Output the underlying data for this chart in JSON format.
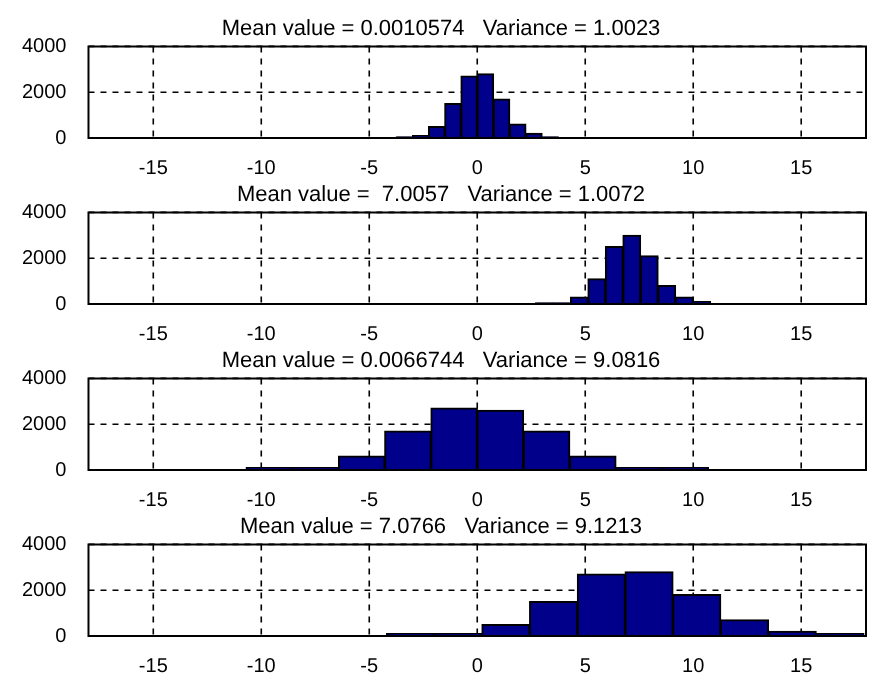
{
  "chart_data": [
    {
      "type": "histogram",
      "title": "Mean value = 0.0010574   Variance = 1.0023",
      "bins": [
        -3.75,
        -3,
        -2.25,
        -1.5,
        -0.75,
        0,
        0.75,
        1.5,
        2.25,
        3,
        3.75
      ],
      "values": [
        50,
        100,
        500,
        1500,
        2700,
        2800,
        1700,
        600,
        200,
        50
      ],
      "color": "#00008b",
      "xlim": [
        -18,
        18
      ],
      "xticks": [
        -15,
        -10,
        -5,
        0,
        5,
        10,
        15
      ],
      "ylim": [
        0,
        4000
      ],
      "yticks": [
        0,
        2000,
        4000
      ],
      "grid": true
    },
    {
      "type": "histogram",
      "title": "Mean value =  7.0057   Variance = 1.0072",
      "bins": [
        2.7,
        3.51,
        4.32,
        5.13,
        5.94,
        6.75,
        7.56,
        8.37,
        9.18,
        9.99,
        10.8
      ],
      "values": [
        50,
        50,
        300,
        1100,
        2500,
        3000,
        2100,
        800,
        300,
        100
      ],
      "color": "#00008b",
      "xlim": [
        -18,
        18
      ],
      "xticks": [
        -15,
        -10,
        -5,
        0,
        5,
        10,
        15
      ],
      "ylim": [
        0,
        4000
      ],
      "yticks": [
        0,
        2000,
        4000
      ],
      "grid": true
    },
    {
      "type": "histogram",
      "title": "Mean value = 0.0066744   Variance = 9.0816",
      "bins": [
        -10.7,
        -8.56,
        -6.42,
        -4.28,
        -2.14,
        0,
        2.14,
        4.28,
        6.42,
        8.56,
        10.7
      ],
      "values": [
        100,
        100,
        600,
        1700,
        2700,
        2600,
        1700,
        600,
        100,
        100
      ],
      "color": "#00008b",
      "xlim": [
        -18,
        18
      ],
      "xticks": [
        -15,
        -10,
        -5,
        0,
        5,
        10,
        15
      ],
      "ylim": [
        0,
        4000
      ],
      "yticks": [
        0,
        2000,
        4000
      ],
      "grid": true
    },
    {
      "type": "histogram",
      "title": "Mean value = 7.0766   Variance = 9.1213",
      "bins": [
        -4.2,
        -1.99,
        0.22,
        2.43,
        4.64,
        6.85,
        9.06,
        11.27,
        13.48,
        15.69,
        17.9
      ],
      "values": [
        100,
        100,
        500,
        1500,
        2700,
        2800,
        1800,
        700,
        200,
        100
      ],
      "color": "#00008b",
      "xlim": [
        -18,
        18
      ],
      "xticks": [
        -15,
        -10,
        -5,
        0,
        5,
        10,
        15
      ],
      "ylim": [
        0,
        4000
      ],
      "yticks": [
        0,
        2000,
        4000
      ],
      "grid": true
    }
  ]
}
